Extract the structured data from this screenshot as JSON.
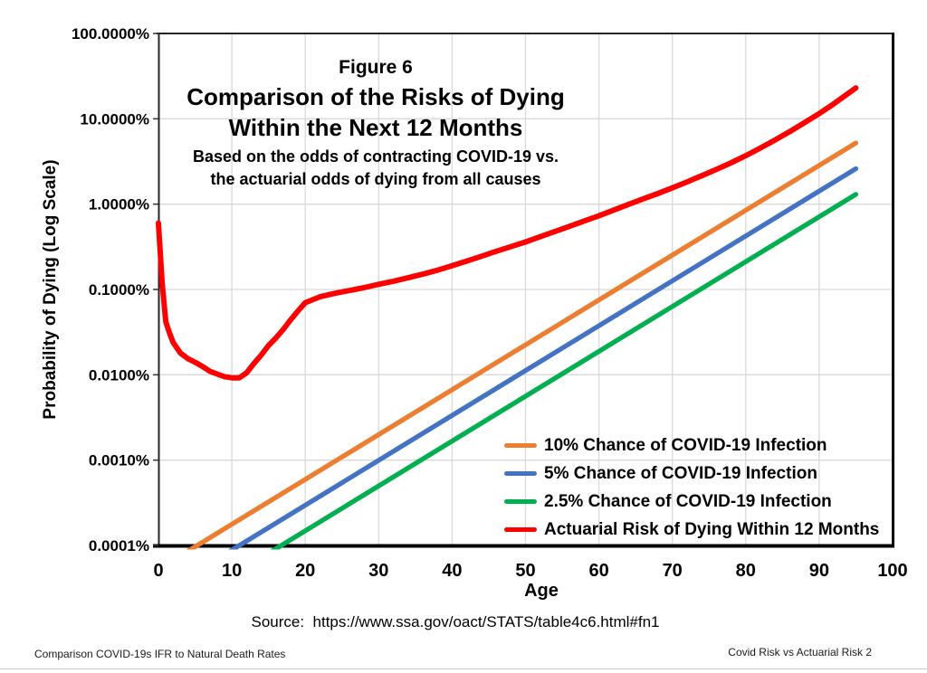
{
  "page": {
    "source_line": "Source:  https://www.ssa.gov/oact/STATS/table4c6.html#fn1",
    "footer_left": "Comparison COVID-19s IFR to Natural Death Rates",
    "footer_right": "Covid Risk vs Actuarial Risk 2"
  },
  "chart_data": {
    "type": "line",
    "title_lines": [
      "Figure 6",
      "Comparison of the Risks of Dying",
      "Within the Next 12 Months"
    ],
    "subtitle_lines": [
      "Based on the odds of contracting COVID-19 vs.",
      "the actuarial odds of dying from all causes"
    ],
    "xlabel": "Age",
    "ylabel": "Probability of Dying (Log Scale)",
    "y_scale": "log",
    "grid": true,
    "legend_position": "inside-lower-right",
    "xlim": [
      0,
      100
    ],
    "ylim_pct": [
      0.0001,
      100
    ],
    "x_ticks": [
      0,
      10,
      20,
      30,
      40,
      50,
      60,
      70,
      80,
      90,
      100
    ],
    "y_ticks": [
      {
        "value": 100,
        "label": "100.0000%"
      },
      {
        "value": 10,
        "label": "10.0000%"
      },
      {
        "value": 1,
        "label": "1.0000%"
      },
      {
        "value": 0.1,
        "label": "0.1000%"
      },
      {
        "value": 0.01,
        "label": "0.0100%"
      },
      {
        "value": 0.001,
        "label": "0.0010%"
      },
      {
        "value": 0.0001,
        "label": "0.0001%"
      }
    ],
    "series": [
      {
        "name": "10% Chance of COVID-19 Infection",
        "color": "#ED7D31",
        "x": [
          0,
          95
        ],
        "y_pct": [
          5.27e-05,
          5.2
        ]
      },
      {
        "name": "5% Chance of COVID-19 Infection",
        "color": "#4472C4",
        "x": [
          0,
          95
        ],
        "y_pct": [
          2.63e-05,
          2.6
        ]
      },
      {
        "name": "2.5% Chance of COVID-19 Infection",
        "color": "#00B050",
        "x": [
          0,
          95
        ],
        "y_pct": [
          1.32e-05,
          1.3
        ]
      },
      {
        "name": "Actuarial Risk of Dying Within 12 Months",
        "color": "#FF0000",
        "x": [
          0,
          0.5,
          1,
          1.5,
          2,
          3,
          4,
          5,
          6,
          7,
          8,
          9,
          10,
          11,
          12,
          13,
          14,
          15,
          16,
          17,
          18,
          19,
          20,
          22,
          24,
          26,
          28,
          30,
          32,
          34,
          36,
          38,
          40,
          42,
          44,
          46,
          48,
          50,
          52,
          54,
          56,
          58,
          60,
          62,
          64,
          66,
          68,
          70,
          72,
          74,
          76,
          78,
          80,
          82,
          84,
          86,
          88,
          90,
          92,
          95
        ],
        "y_pct": [
          0.6,
          0.12,
          0.042,
          0.031,
          0.024,
          0.018,
          0.0155,
          0.014,
          0.0125,
          0.011,
          0.0102,
          0.0095,
          0.0092,
          0.0092,
          0.0105,
          0.0135,
          0.017,
          0.022,
          0.027,
          0.034,
          0.044,
          0.056,
          0.07,
          0.082,
          0.09,
          0.097,
          0.105,
          0.115,
          0.125,
          0.137,
          0.151,
          0.168,
          0.19,
          0.215,
          0.245,
          0.28,
          0.317,
          0.36,
          0.415,
          0.478,
          0.55,
          0.635,
          0.73,
          0.85,
          0.99,
          1.15,
          1.33,
          1.55,
          1.82,
          2.15,
          2.55,
          3.05,
          3.7,
          4.55,
          5.65,
          7.1,
          9.0,
          11.5,
          15.0,
          23.0
        ]
      }
    ]
  }
}
